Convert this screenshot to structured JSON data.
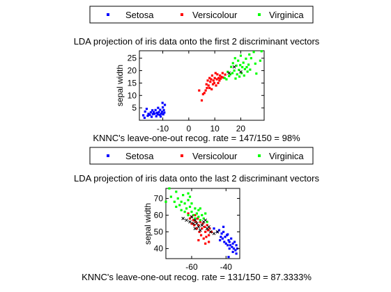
{
  "chart_data": [
    {
      "type": "scatter",
      "title": "LDA projection of iris data onto the first 2 discriminant vectors",
      "xlabel": "",
      "ylabel": "sepal width",
      "xlim": [
        -19,
        29
      ],
      "ylim": [
        0,
        28
      ],
      "xticks": [
        -10,
        0,
        10,
        20
      ],
      "yticks": [
        5,
        10,
        15,
        20,
        25
      ],
      "caption": "KNNC's leave-one-out recog. rate = 147/150 = 98%",
      "legend": "top",
      "series": [
        {
          "name": "Setosa",
          "color": "#0000ff",
          "marker": "point",
          "points": [
            [
              -17.5,
              2
            ],
            [
              -17,
              1
            ],
            [
              -16.8,
              3.5
            ],
            [
              -16.2,
              4.6
            ],
            [
              -15.8,
              1.8
            ],
            [
              -15.5,
              2.6
            ],
            [
              -15,
              2.2
            ],
            [
              -14.6,
              3.2
            ],
            [
              -14.3,
              1.4
            ],
            [
              -14,
              4
            ],
            [
              -13.8,
              2.5
            ],
            [
              -13.5,
              3.2
            ],
            [
              -13.2,
              2.6
            ],
            [
              -12.8,
              4.1
            ],
            [
              -12.5,
              1.6
            ],
            [
              -12.3,
              3
            ],
            [
              -12,
              2.4
            ],
            [
              -11.8,
              5
            ],
            [
              -11.5,
              3.3
            ],
            [
              -11.2,
              2.2
            ],
            [
              -11,
              4.2
            ],
            [
              -10.8,
              1.5
            ],
            [
              -10.6,
              2.6
            ],
            [
              -10.3,
              3.4
            ],
            [
              -10,
              5.2
            ],
            [
              -9.8,
              2.4
            ],
            [
              -9.6,
              4.1
            ],
            [
              -9.4,
              3.1
            ],
            [
              -9.2,
              6.2
            ],
            [
              -10.1,
              7
            ]
          ]
        },
        {
          "name": "Versicolour",
          "color": "#ff0000",
          "marker": "point",
          "points": [
            [
              4,
              12
            ],
            [
              5,
              8
            ],
            [
              5.5,
              10.5
            ],
            [
              6,
              11
            ],
            [
              6.5,
              12
            ],
            [
              6.8,
              14.5
            ],
            [
              7,
              13
            ],
            [
              7.3,
              16
            ],
            [
              7.6,
              14
            ],
            [
              8,
              13
            ],
            [
              8,
              17
            ],
            [
              8.3,
              15.5
            ],
            [
              8.6,
              16.5
            ],
            [
              8.8,
              12.5
            ],
            [
              9,
              18
            ],
            [
              9.3,
              14.5
            ],
            [
              9.5,
              16
            ],
            [
              9.8,
              15
            ],
            [
              10,
              17
            ],
            [
              10.3,
              19
            ],
            [
              10.5,
              14
            ],
            [
              10.8,
              16.5
            ],
            [
              11,
              18.5
            ],
            [
              11.3,
              15
            ],
            [
              11.5,
              17
            ],
            [
              11.8,
              16
            ],
            [
              12,
              18
            ],
            [
              12.3,
              16.8
            ],
            [
              12.6,
              17.5
            ],
            [
              13,
              19
            ],
            [
              13.3,
              17.2
            ],
            [
              14,
              18.4
            ]
          ]
        },
        {
          "name": "Virginica",
          "color": "#00ff00",
          "marker": "point",
          "points": [
            [
              13.8,
              17
            ],
            [
              14.5,
              16.5
            ],
            [
              15,
              19.5
            ],
            [
              15.5,
              17.8
            ],
            [
              16,
              18.5
            ],
            [
              16.3,
              21.5
            ],
            [
              16.8,
              19
            ],
            [
              17,
              23
            ],
            [
              17.5,
              20
            ],
            [
              17.8,
              25
            ],
            [
              18,
              16.8
            ],
            [
              18.3,
              22
            ],
            [
              18.6,
              18.5
            ],
            [
              19,
              24
            ],
            [
              19.3,
              20.3
            ],
            [
              19.5,
              17.6
            ],
            [
              19.8,
              22.2
            ],
            [
              20,
              26
            ],
            [
              20.3,
              19
            ],
            [
              20.6,
              21.4
            ],
            [
              21,
              23.2
            ],
            [
              21.3,
              18
            ],
            [
              21.6,
              20.6
            ],
            [
              22,
              24.8
            ],
            [
              22.3,
              21.4
            ],
            [
              22.6,
              19.6
            ],
            [
              23,
              22.4
            ],
            [
              23.3,
              26.5
            ],
            [
              23.6,
              20.4
            ],
            [
              24,
              25
            ],
            [
              25,
              27.5
            ],
            [
              25.6,
              22.8
            ],
            [
              26,
              18.8
            ],
            [
              27.5,
              24
            ],
            [
              28,
              27.8
            ]
          ]
        },
        {
          "name": "",
          "color": "#000000",
          "marker": "x",
          "points": [
            [
              15.5,
              19
            ],
            [
              17.5,
              21.5
            ],
            [
              20,
              19.5
            ]
          ]
        }
      ]
    },
    {
      "type": "scatter",
      "title": "LDA projection of iris data onto the last 2 discriminant vectors",
      "xlabel": "",
      "ylabel": "sepal width",
      "xlim": [
        -75,
        -32
      ],
      "ylim": [
        34,
        76
      ],
      "xticks": [
        -60,
        -40
      ],
      "yticks": [
        40,
        50,
        60,
        70
      ],
      "caption": "KNNC's leave-one-out recog. rate = 131/150 = 87.3333%",
      "legend": "top",
      "series": [
        {
          "name": "Setosa",
          "color": "#0000ff",
          "marker": "point",
          "points": [
            [
              -45,
              50
            ],
            [
              -44,
              51
            ],
            [
              -43,
              47
            ],
            [
              -42.5,
              49
            ],
            [
              -42,
              46
            ],
            [
              -41.5,
              50
            ],
            [
              -41,
              44
            ],
            [
              -40.5,
              47
            ],
            [
              -40,
              43
            ],
            [
              -39.5,
              48
            ],
            [
              -39,
              42
            ],
            [
              -38.5,
              45
            ],
            [
              -38,
              44
            ],
            [
              -38,
              40
            ],
            [
              -37.5,
              42
            ],
            [
              -37,
              46
            ],
            [
              -36.5,
              41
            ],
            [
              -36,
              43
            ],
            [
              -36,
              38
            ],
            [
              -35.5,
              40
            ],
            [
              -35,
              44
            ],
            [
              -34.5,
              39
            ],
            [
              -34,
              42
            ],
            [
              -34,
              37
            ],
            [
              -33.5,
              40
            ],
            [
              -38.5,
              35
            ],
            [
              -47,
              52
            ],
            [
              -41.5,
              53
            ],
            [
              -43.5,
              45
            ],
            [
              -39,
              48.5
            ]
          ]
        },
        {
          "name": "Versicolour",
          "color": "#ff0000",
          "marker": "point",
          "points": [
            [
              -62,
              61
            ],
            [
              -61,
              58
            ],
            [
              -60,
              59
            ],
            [
              -60,
              55
            ],
            [
              -59,
              57
            ],
            [
              -58.5,
              54
            ],
            [
              -58,
              60
            ],
            [
              -57.5,
              56
            ],
            [
              -57,
              52
            ],
            [
              -56.5,
              58
            ],
            [
              -56,
              54
            ],
            [
              -55.5,
              50
            ],
            [
              -55,
              56
            ],
            [
              -54.5,
              48
            ],
            [
              -54,
              52
            ],
            [
              -53.5,
              55
            ],
            [
              -53,
              46
            ],
            [
              -52.5,
              53
            ],
            [
              -52,
              50
            ],
            [
              -51.5,
              47
            ],
            [
              -51,
              54
            ],
            [
              -50.5,
              51
            ],
            [
              -50,
              48
            ],
            [
              -49.5,
              52
            ],
            [
              -48.5,
              50
            ],
            [
              -56,
              45
            ],
            [
              -52,
              43
            ],
            [
              -50,
              44
            ]
          ]
        },
        {
          "name": "Virginica",
          "color": "#00ff00",
          "marker": "point",
          "points": [
            [
              -75,
              68
            ],
            [
              -73,
              76
            ],
            [
              -72,
              71
            ],
            [
              -70,
              68
            ],
            [
              -69,
              74
            ],
            [
              -69,
              65
            ],
            [
              -68,
              70
            ],
            [
              -67,
              66
            ],
            [
              -66,
              68
            ],
            [
              -66,
              63
            ],
            [
              -65,
              72
            ],
            [
              -64,
              67
            ],
            [
              -64,
              62
            ],
            [
              -63,
              64
            ],
            [
              -62,
              69
            ],
            [
              -62,
              60
            ],
            [
              -61,
              65
            ],
            [
              -60,
              62
            ],
            [
              -60,
              67
            ],
            [
              -59,
              60
            ],
            [
              -58,
              64
            ],
            [
              -58,
              58
            ],
            [
              -57,
              61
            ],
            [
              -56,
              59
            ],
            [
              -56,
              63
            ],
            [
              -55,
              57
            ],
            [
              -54,
              60
            ],
            [
              -53,
              58
            ],
            [
              -52,
              61
            ],
            [
              -51,
              56
            ],
            [
              -62,
              73
            ],
            [
              -55,
              64
            ],
            [
              -61,
              71
            ]
          ]
        },
        {
          "name": "",
          "color": "#000000",
          "marker": "x",
          "points": [
            [
              -65,
              58
            ],
            [
              -63,
              57
            ],
            [
              -61,
              56
            ],
            [
              -59,
              55
            ],
            [
              -58,
              57
            ],
            [
              -56,
              53
            ],
            [
              -54,
              54
            ],
            [
              -53,
              56
            ],
            [
              -51,
              52
            ],
            [
              -49,
              50
            ],
            [
              -47,
              49
            ],
            [
              -58,
              52
            ],
            [
              -55,
              51
            ],
            [
              -60,
              59
            ],
            [
              -52,
              57
            ],
            [
              -45,
              50
            ],
            [
              -57,
              55
            ],
            [
              -50,
              53
            ]
          ]
        }
      ]
    }
  ]
}
